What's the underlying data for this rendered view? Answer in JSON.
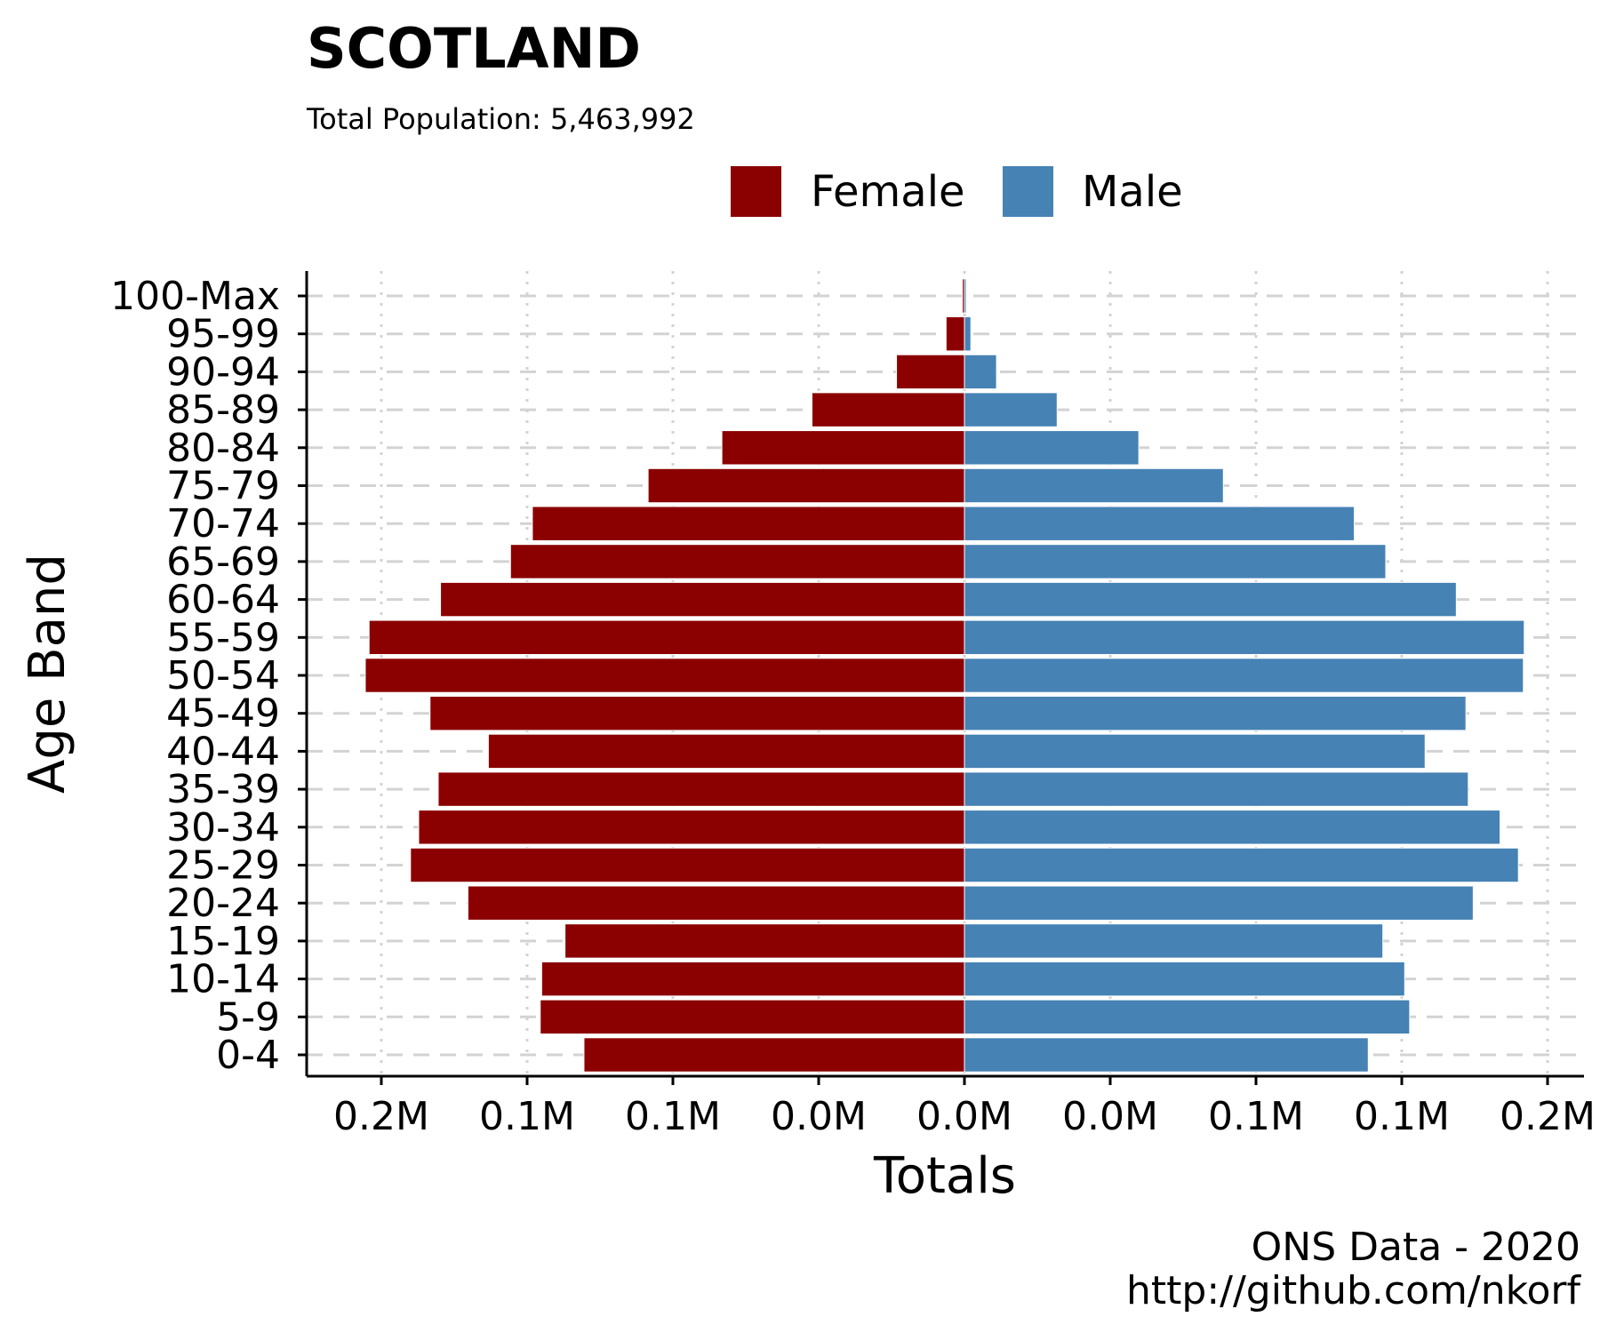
{
  "chart_data": {
    "type": "bar",
    "orientation": "horizontal",
    "title": "SCOTLAND",
    "subtitle": "Total Population:  5,463,992",
    "xlabel": "Totals",
    "ylabel": "Age Band",
    "xlim": [
      -0.2,
      0.2
    ],
    "x_tick_values": [
      -0.2,
      -0.15,
      -0.1,
      -0.05,
      0,
      0.05,
      0.1,
      0.15,
      0.2
    ],
    "x_tick_labels": [
      "0.2M",
      "0.1M",
      "0.1M",
      "0.0M",
      "0.0M",
      "0.0M",
      "0.1M",
      "0.1M",
      "0.2M"
    ],
    "categories": [
      "0-4",
      "5-9",
      "10-14",
      "15-19",
      "20-24",
      "25-29",
      "30-34",
      "35-39",
      "40-44",
      "45-49",
      "50-54",
      "55-59",
      "60-64",
      "65-69",
      "70-74",
      "75-79",
      "80-84",
      "85-89",
      "90-94",
      "95-99",
      "100-Max"
    ],
    "series": [
      {
        "name": "Female",
        "color": "#8B0000",
        "values": [
          -0.1305,
          -0.1455,
          -0.145,
          -0.137,
          -0.1703,
          -0.19,
          -0.1872,
          -0.1805,
          -0.1633,
          -0.1833,
          -0.2055,
          -0.2042,
          -0.1797,
          -0.1557,
          -0.1482,
          -0.1085,
          -0.0832,
          -0.0523,
          -0.0233,
          -0.0063,
          -0.0007
        ]
      },
      {
        "name": "Male",
        "color": "#4682B4",
        "values": [
          0.1385,
          0.1527,
          0.151,
          0.1435,
          0.1745,
          0.19,
          0.1837,
          0.1728,
          0.158,
          0.172,
          0.1917,
          0.192,
          0.1687,
          0.1445,
          0.1337,
          0.0888,
          0.0598,
          0.0318,
          0.011,
          0.0022,
          0.0003
        ]
      }
    ],
    "legend": {
      "position": "top",
      "items": [
        "Female",
        "Male"
      ]
    },
    "grid": true,
    "caption": [
      "ONS Data - 2020",
      "http://github.com/nkorf"
    ]
  }
}
